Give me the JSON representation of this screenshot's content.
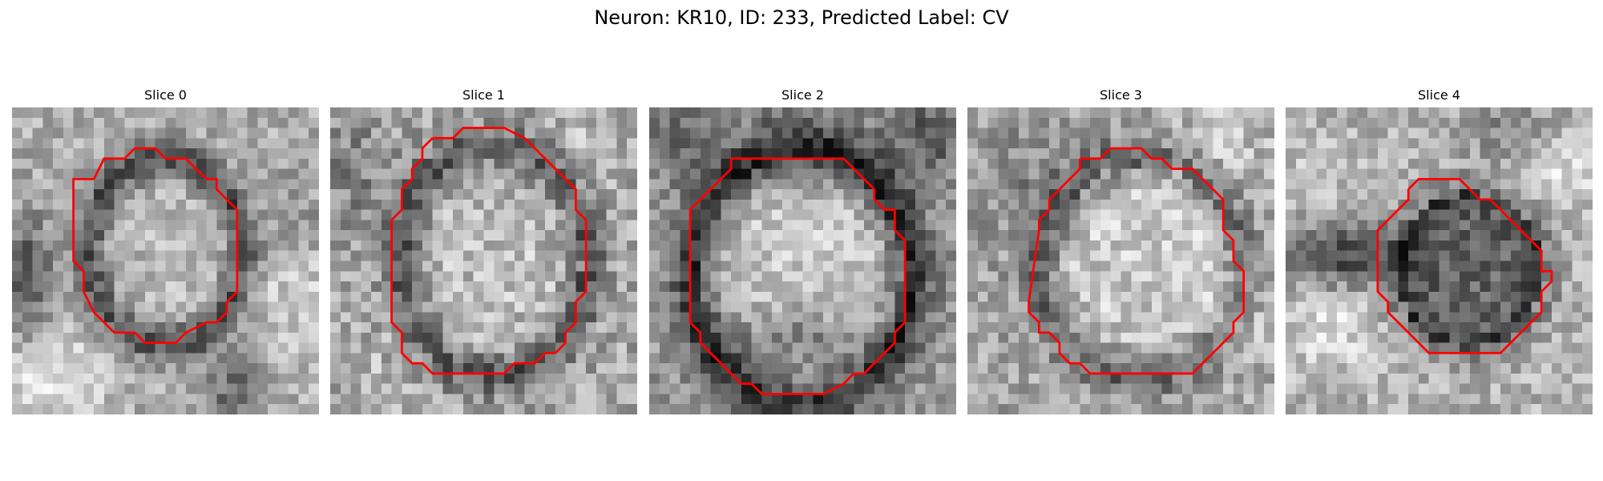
{
  "figure": {
    "title": "Neuron: KR10, ID: 233, Predicted Label: CV"
  },
  "panels": [
    {
      "title": "Slice 0"
    },
    {
      "title": "Slice 1"
    },
    {
      "title": "Slice 2"
    },
    {
      "title": "Slice 3"
    },
    {
      "title": "Slice 4"
    }
  ],
  "colors": {
    "contour": "#ff0000",
    "background": "#ffffff",
    "colormap": "grayscale"
  }
}
